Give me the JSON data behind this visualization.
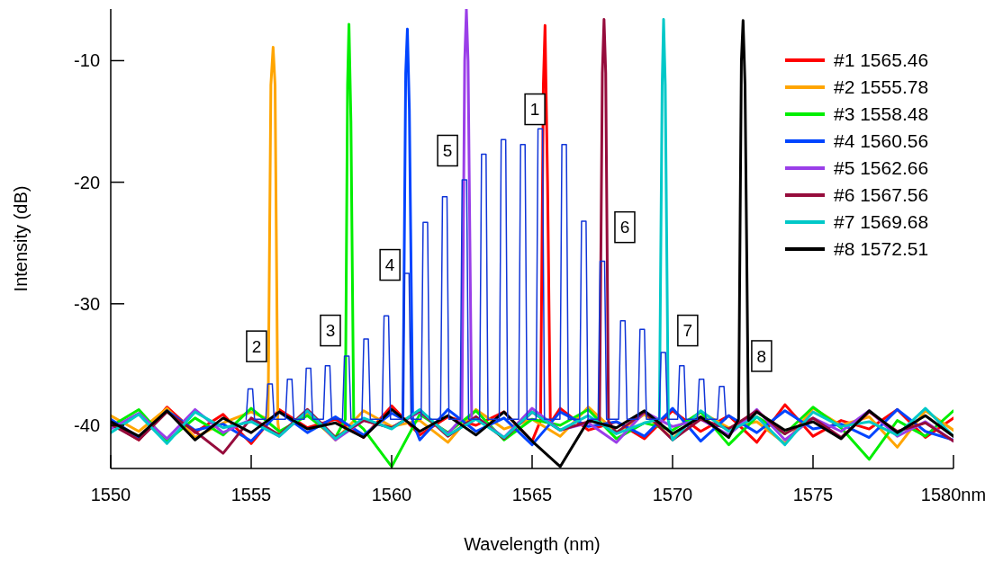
{
  "chart_data": {
    "type": "line",
    "xlabel": "Wavelength (nm)",
    "ylabel": "Intensity (dB)",
    "xlim": [
      1550,
      1580
    ],
    "ylim": [
      -43.55,
      -5.75
    ],
    "xticks": [
      1550,
      1555,
      1560,
      1565,
      1570,
      1575,
      {
        "value": 1580,
        "label": "1580nm"
      }
    ],
    "yticks": [
      -10,
      -20,
      -30,
      -40
    ],
    "legend": "top right",
    "series": [
      {
        "name": "#1 1565.46",
        "color": "#ff0000",
        "x": [
          1550,
          1551,
          1552,
          1553,
          1554,
          1555,
          1556,
          1557,
          1558,
          1559,
          1560,
          1561,
          1562,
          1563,
          1564,
          1565,
          1565.3,
          1565.4,
          1565.46,
          1565.55,
          1565.65,
          1566,
          1567,
          1568,
          1569,
          1570,
          1571,
          1572,
          1573,
          1574,
          1575,
          1576,
          1577,
          1578,
          1579,
          1580
        ],
        "values": [
          -39.8,
          -41.2,
          -38.5,
          -40.6,
          -39.1,
          -41.5,
          -38.7,
          -40.2,
          -39.5,
          -41.0,
          -38.4,
          -40.8,
          -39.3,
          -40.0,
          -38.9,
          -41.3,
          -39.6,
          -12,
          -7.1,
          -20,
          -39.8,
          -38.6,
          -40.4,
          -39.7,
          -41.1,
          -38.8,
          -40.5,
          -39.2,
          -41.4,
          -38.3,
          -40.9,
          -39.6,
          -40.3,
          -38.7,
          -41.0,
          -39.4
        ]
      },
      {
        "name": "#2 1555.78",
        "color": "#ffa500",
        "x": [
          1550,
          1551,
          1552,
          1553,
          1554,
          1555,
          1555.6,
          1555.7,
          1555.78,
          1555.85,
          1555.95,
          1556,
          1557,
          1558,
          1559,
          1560,
          1561,
          1562,
          1563,
          1564,
          1565,
          1566,
          1567,
          1568,
          1569,
          1570,
          1571,
          1572,
          1573,
          1574,
          1575,
          1576,
          1577,
          1578,
          1579,
          1580
        ],
        "values": [
          -39.2,
          -40.5,
          -38.6,
          -41.0,
          -39.8,
          -38.9,
          -39.5,
          -12,
          -8.9,
          -12,
          -39.8,
          -40.7,
          -39.0,
          -41.2,
          -38.8,
          -40.1,
          -39.6,
          -41.4,
          -38.7,
          -40.3,
          -39.5,
          -40.9,
          -38.5,
          -40.6,
          -39.1,
          -41.1,
          -38.9,
          -40.2,
          -39.7,
          -41.5,
          -38.6,
          -40.0,
          -39.3,
          -41.8,
          -38.8,
          -40.4
        ]
      },
      {
        "name": "#3 1558.48",
        "color": "#00ee00",
        "x": [
          1550,
          1551,
          1552,
          1553,
          1554,
          1555,
          1556,
          1557,
          1558,
          1558.35,
          1558.43,
          1558.48,
          1558.55,
          1558.65,
          1559,
          1560,
          1561,
          1562,
          1563,
          1564,
          1565,
          1566,
          1567,
          1568,
          1569,
          1570,
          1571,
          1572,
          1573,
          1574,
          1575,
          1576,
          1577,
          1578,
          1579,
          1580
        ],
        "values": [
          -40.1,
          -38.7,
          -41.3,
          -39.4,
          -40.8,
          -38.6,
          -40.5,
          -39.2,
          -41.0,
          -39.5,
          -12,
          -7.0,
          -15,
          -39.6,
          -40.3,
          -43.4,
          -39.1,
          -40.6,
          -38.8,
          -41.2,
          -39.5,
          -40.0,
          -38.7,
          -41.1,
          -39.8,
          -40.4,
          -38.9,
          -41.6,
          -39.3,
          -40.7,
          -38.5,
          -40.2,
          -42.8,
          -39.6,
          -40.9,
          -38.8
        ]
      },
      {
        "name": "#4 1560.56",
        "color": "#0044ff",
        "x": [
          1550,
          1551,
          1552,
          1553,
          1554,
          1555,
          1556,
          1557,
          1558,
          1559,
          1560,
          1560.4,
          1560.5,
          1560.56,
          1560.63,
          1560.75,
          1561,
          1562,
          1563,
          1564,
          1565,
          1566,
          1567,
          1568,
          1569,
          1570,
          1571,
          1572,
          1573,
          1574,
          1575,
          1576,
          1577,
          1578,
          1579,
          1580
        ],
        "values": [
          -39.5,
          -41.0,
          -38.8,
          -40.4,
          -39.9,
          -41.3,
          -38.9,
          -40.6,
          -39.3,
          -40.8,
          -39.0,
          -39.5,
          -11,
          -7.4,
          -14,
          -39.7,
          -41.2,
          -38.7,
          -40.5,
          -39.4,
          -41.6,
          -38.9,
          -40.1,
          -39.7,
          -40.9,
          -38.6,
          -41.3,
          -39.2,
          -40.6,
          -38.8,
          -40.3,
          -39.9,
          -41.0,
          -38.7,
          -40.5,
          -41.2
        ]
      },
      {
        "name": "#5 1562.66",
        "color": "#9a3ee8",
        "x": [
          1550,
          1551,
          1552,
          1553,
          1554,
          1555,
          1556,
          1557,
          1558,
          1559,
          1560,
          1561,
          1562,
          1562.5,
          1562.6,
          1562.66,
          1562.72,
          1562.85,
          1563,
          1564,
          1565,
          1566,
          1567,
          1568,
          1569,
          1570,
          1571,
          1572,
          1573,
          1574,
          1575,
          1576,
          1577,
          1578,
          1579,
          1580
        ],
        "values": [
          -40.3,
          -39.0,
          -41.1,
          -38.7,
          -40.6,
          -39.5,
          -40.9,
          -38.8,
          -41.2,
          -39.6,
          -40.2,
          -38.9,
          -40.7,
          -39.4,
          -10,
          -5.8,
          -10,
          -39.6,
          -39.3,
          -41.0,
          -38.6,
          -40.4,
          -39.8,
          -41.4,
          -38.9,
          -40.1,
          -39.5,
          -40.8,
          -38.7,
          -41.2,
          -39.4,
          -40.5,
          -38.8,
          -40.9,
          -39.7,
          -41.3
        ]
      },
      {
        "name": "#6 1567.56",
        "color": "#960c3c",
        "x": [
          1550,
          1551,
          1552,
          1553,
          1554,
          1555,
          1556,
          1557,
          1558,
          1559,
          1560,
          1561,
          1562,
          1563,
          1564,
          1565,
          1566,
          1567,
          1567.4,
          1567.5,
          1567.56,
          1567.62,
          1567.72,
          1568,
          1569,
          1570,
          1571,
          1572,
          1573,
          1574,
          1575,
          1576,
          1577,
          1578,
          1579,
          1580
        ],
        "values": [
          -39.9,
          -41.2,
          -38.9,
          -40.5,
          -42.3,
          -39.4,
          -40.8,
          -38.7,
          -41.0,
          -39.6,
          -40.2,
          -38.8,
          -40.9,
          -39.3,
          -41.1,
          -38.9,
          -40.4,
          -39.7,
          -39.6,
          -11,
          -6.6,
          -11,
          -39.7,
          -40.6,
          -38.9,
          -41.2,
          -39.5,
          -40.3,
          -38.8,
          -40.7,
          -39.4,
          -41.0,
          -38.9,
          -40.5,
          -39.8,
          -41.3
        ]
      },
      {
        "name": "#7 1569.68",
        "color": "#00c8c8",
        "x": [
          1550,
          1551,
          1552,
          1553,
          1554,
          1555,
          1556,
          1557,
          1558,
          1559,
          1560,
          1561,
          1562,
          1563,
          1564,
          1565,
          1566,
          1567,
          1568,
          1569,
          1569.53,
          1569.63,
          1569.68,
          1569.74,
          1569.85,
          1570,
          1571,
          1572,
          1573,
          1574,
          1575,
          1576,
          1577,
          1578,
          1579,
          1580
        ],
        "values": [
          -40.6,
          -39.1,
          -41.5,
          -38.9,
          -40.2,
          -39.7,
          -40.9,
          -38.8,
          -41.1,
          -39.4,
          -40.3,
          -38.7,
          -40.8,
          -39.5,
          -41.0,
          -38.9,
          -40.4,
          -39.2,
          -40.7,
          -39.8,
          -39.5,
          -12,
          -6.6,
          -12,
          -39.6,
          -41.2,
          -38.8,
          -40.5,
          -39.3,
          -41.6,
          -38.9,
          -40.1,
          -39.7,
          -40.8,
          -38.6,
          -40.9
        ]
      },
      {
        "name": "#8 1572.51",
        "color": "#000000",
        "x": [
          1550,
          1551,
          1552,
          1553,
          1554,
          1555,
          1556,
          1557,
          1558,
          1559,
          1560,
          1561,
          1562,
          1563,
          1564,
          1565,
          1566,
          1567,
          1568,
          1569,
          1570,
          1571,
          1572,
          1572.35,
          1572.45,
          1572.51,
          1572.58,
          1572.7,
          1573,
          1574,
          1575,
          1576,
          1577,
          1578,
          1579,
          1580
        ],
        "values": [
          -39.7,
          -40.9,
          -38.8,
          -41.2,
          -39.4,
          -40.6,
          -38.9,
          -40.3,
          -39.8,
          -41.0,
          -38.7,
          -40.5,
          -39.2,
          -40.8,
          -38.9,
          -41.3,
          -43.4,
          -39.6,
          -40.2,
          -38.8,
          -40.7,
          -39.3,
          -41.0,
          -39.5,
          -10,
          -6.7,
          -12,
          -39.6,
          -38.9,
          -40.4,
          -39.7,
          -41.1,
          -38.8,
          -40.6,
          -39.2,
          -40.9
        ]
      },
      {
        "color": "#1035d8",
        "x": [
          1554.82,
          1554.89,
          1555.05,
          1555.12,
          1555.52,
          1555.59,
          1555.75,
          1555.82,
          1556.22,
          1556.29,
          1556.45,
          1556.52,
          1556.89,
          1556.96,
          1557.12,
          1557.19,
          1557.57,
          1557.64,
          1557.8,
          1557.87,
          1558.25,
          1558.32,
          1558.48,
          1558.55,
          1558.94,
          1559.01,
          1559.17,
          1559.24,
          1559.66,
          1559.73,
          1559.89,
          1559.96,
          1560.39,
          1560.46,
          1560.62,
          1560.69,
          1561.05,
          1561.12,
          1561.28,
          1561.35,
          1561.74,
          1561.81,
          1561.97,
          1562.04,
          1562.44,
          1562.51,
          1562.67,
          1562.74,
          1563.13,
          1563.2,
          1563.36,
          1563.43,
          1563.83,
          1563.9,
          1564.06,
          1564.13,
          1564.52,
          1564.59,
          1564.75,
          1564.82,
          1565.14,
          1565.21,
          1565.37,
          1565.44,
          1565.99,
          1566.06,
          1566.22,
          1566.29,
          1566.69,
          1566.76,
          1566.92,
          1566.99,
          1567.35,
          1567.42,
          1567.58,
          1567.65,
          1568.08,
          1568.15,
          1568.31,
          1568.38,
          1568.77,
          1568.84,
          1569.0,
          1569.07,
          1569.52,
          1569.59,
          1569.75,
          1569.82,
          1570.18,
          1570.25,
          1570.41,
          1570.48,
          1570.88,
          1570.95,
          1571.11,
          1571.18,
          1571.6,
          1571.67,
          1571.83,
          1571.9
        ],
        "values": [
          -39.5,
          -37.0,
          -37.0,
          -39.5,
          -39.5,
          -36.6,
          -36.6,
          -39.5,
          -39.5,
          -36.2,
          -36.2,
          -39.5,
          -39.5,
          -35.3,
          -35.3,
          -39.5,
          -39.5,
          -35.1,
          -35.1,
          -39.5,
          -39.5,
          -34.3,
          -34.3,
          -39.5,
          -39.5,
          -32.9,
          -32.9,
          -39.5,
          -39.5,
          -31.0,
          -31.0,
          -39.5,
          -39.5,
          -27.5,
          -27.5,
          -39.5,
          -39.5,
          -23.3,
          -23.3,
          -39.5,
          -39.5,
          -21.2,
          -21.2,
          -39.5,
          -39.5,
          -19.8,
          -19.8,
          -39.5,
          -39.5,
          -17.7,
          -17.7,
          -39.5,
          -39.5,
          -16.5,
          -16.5,
          -39.5,
          -39.5,
          -16.9,
          -16.9,
          -39.5,
          -39.5,
          -15.6,
          -15.6,
          -39.5,
          -39.5,
          -16.9,
          -16.9,
          -39.5,
          -39.5,
          -23.2,
          -23.2,
          -39.5,
          -39.5,
          -26.5,
          -26.5,
          -39.5,
          -39.5,
          -31.4,
          -31.4,
          -39.5,
          -39.5,
          -32.1,
          -32.1,
          -39.5,
          -39.5,
          -34.0,
          -34.0,
          -39.5,
          -39.5,
          -35.1,
          -35.1,
          -39.5,
          -39.5,
          -36.2,
          -36.2,
          -39.5,
          -39.5,
          -36.8,
          -36.8,
          -39.5
        ]
      }
    ],
    "annotations": [
      {
        "text": "1",
        "x": 1565.1,
        "y": -14.0
      },
      {
        "text": "2",
        "x": 1555.19,
        "y": -33.5
      },
      {
        "text": "3",
        "x": 1557.82,
        "y": -32.2
      },
      {
        "text": "4",
        "x": 1559.94,
        "y": -26.8
      },
      {
        "text": "5",
        "x": 1561.99,
        "y": -17.4
      },
      {
        "text": "6",
        "x": 1568.3,
        "y": -23.7
      },
      {
        "text": "7",
        "x": 1570.54,
        "y": -32.2
      },
      {
        "text": "8",
        "x": 1573.17,
        "y": -34.3
      }
    ]
  }
}
